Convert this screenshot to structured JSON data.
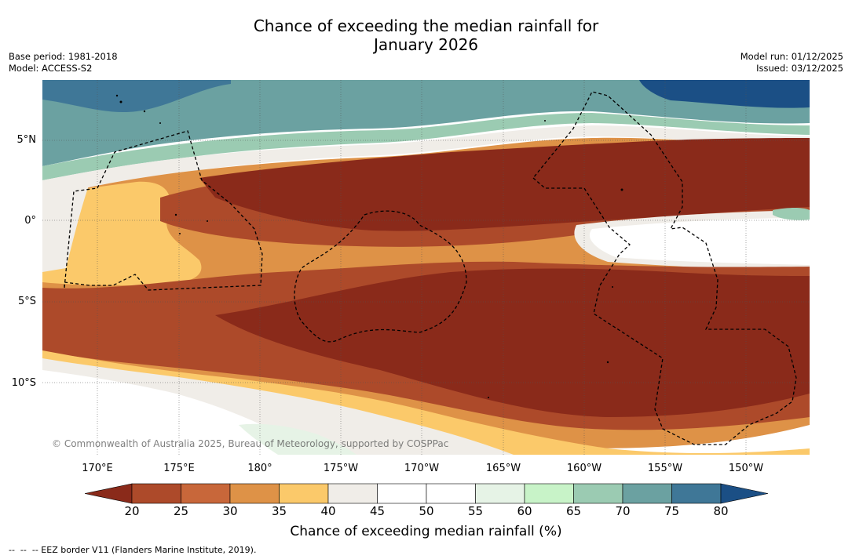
{
  "header": {
    "title_line1": "Chance of exceeding the median rainfall for",
    "title_line2": "January 2026",
    "base_period": "Base period: 1981-2018",
    "model": "Model: ACCESS-S2",
    "model_run": "Model run: 01/12/2025",
    "issued": "Issued: 03/12/2025"
  },
  "map": {
    "lat_labels": [
      "5°N",
      "0°",
      "5°S",
      "10°S"
    ],
    "lon_labels": [
      "170°E",
      "175°E",
      "180°",
      "175°W",
      "170°W",
      "165°W",
      "160°W",
      "155°W",
      "150°W"
    ],
    "credit": "© Commonwealth of Australia 2025, Bureau of Meteorology, supported by COSPPac"
  },
  "legend": {
    "ticks": [
      "20",
      "25",
      "30",
      "35",
      "40",
      "45",
      "50",
      "55",
      "60",
      "65",
      "70",
      "75",
      "80"
    ],
    "colors": [
      "#8a2a1a",
      "#ad4a2a",
      "#c8673a",
      "#de9247",
      "#fbc96a",
      "#f0ede8",
      "#ffffff",
      "#ffffff",
      "#e6f3e6",
      "#c8f3c8",
      "#9bcbb2",
      "#6ba1a1",
      "#3f7797",
      "#1b4f85"
    ],
    "title": "Chance of exceeding median rainfall (%)"
  },
  "footnote": "--  --  -- EEZ border V11 (Flanders Marine Institute, 2019)."
}
